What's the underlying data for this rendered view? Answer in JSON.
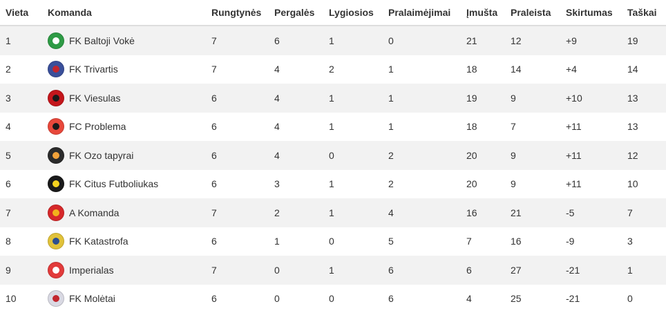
{
  "columns": [
    "Vieta",
    "Komanda",
    "Rungtynės",
    "Pergalės",
    "Lygiosios",
    "Pralaimėjimai",
    "Įmušta",
    "Praleista",
    "Skirtumas",
    "Taškai"
  ],
  "rows": [
    {
      "place": "1",
      "team": "FK Baltoji Vokė",
      "logo": "baltoji-voke-crest-icon",
      "color": "#2e9b45",
      "accent": "#ffffff",
      "played": "7",
      "won": "6",
      "drawn": "1",
      "lost": "0",
      "scored": "21",
      "conceded": "12",
      "diff": "+9",
      "points": "19"
    },
    {
      "place": "2",
      "team": "FK Trivartis",
      "logo": "trivartis-crest-icon",
      "color": "#3a4f9a",
      "accent": "#c2262e",
      "played": "7",
      "won": "4",
      "drawn": "2",
      "lost": "1",
      "scored": "18",
      "conceded": "14",
      "diff": "+4",
      "points": "14"
    },
    {
      "place": "3",
      "team": "FK Viesulas",
      "logo": "viesulas-crest-icon",
      "color": "#c4161c",
      "accent": "#1a1a1a",
      "played": "6",
      "won": "4",
      "drawn": "1",
      "lost": "1",
      "scored": "19",
      "conceded": "9",
      "diff": "+10",
      "points": "13"
    },
    {
      "place": "4",
      "team": "FC Problema",
      "logo": "problema-crest-icon",
      "color": "#e8483b",
      "accent": "#1a1a1a",
      "played": "6",
      "won": "4",
      "drawn": "1",
      "lost": "1",
      "scored": "18",
      "conceded": "7",
      "diff": "+11",
      "points": "13"
    },
    {
      "place": "5",
      "team": "FK Ozo tapyrai",
      "logo": "ozo-tapyrai-crest-icon",
      "color": "#2b2b2b",
      "accent": "#f2a23a",
      "played": "6",
      "won": "4",
      "drawn": "0",
      "lost": "2",
      "scored": "20",
      "conceded": "9",
      "diff": "+11",
      "points": "12"
    },
    {
      "place": "6",
      "team": "FK Citus Futboliukas",
      "logo": "citus-futboliukas-crest-icon",
      "color": "#1a1a1a",
      "accent": "#f4d21f",
      "played": "6",
      "won": "3",
      "drawn": "1",
      "lost": "2",
      "scored": "20",
      "conceded": "9",
      "diff": "+11",
      "points": "10"
    },
    {
      "place": "7",
      "team": "A Komanda",
      "logo": "a-komanda-crest-icon",
      "color": "#d6282a",
      "accent": "#f2b21c",
      "played": "7",
      "won": "2",
      "drawn": "1",
      "lost": "4",
      "scored": "16",
      "conceded": "21",
      "diff": "-5",
      "points": "7"
    },
    {
      "place": "8",
      "team": "FK Katastrofa",
      "logo": "katastrofa-crest-icon",
      "color": "#e1c23a",
      "accent": "#2d4f8f",
      "played": "6",
      "won": "1",
      "drawn": "0",
      "lost": "5",
      "scored": "7",
      "conceded": "16",
      "diff": "-9",
      "points": "3"
    },
    {
      "place": "9",
      "team": "Imperialas",
      "logo": "imperialas-crest-icon",
      "color": "#e23b3b",
      "accent": "#ffffff",
      "played": "7",
      "won": "0",
      "drawn": "1",
      "lost": "6",
      "scored": "6",
      "conceded": "27",
      "diff": "-21",
      "points": "1"
    },
    {
      "place": "10",
      "team": "FK Molėtai",
      "logo": "moletai-crest-icon",
      "color": "#d9d9e3",
      "accent": "#c2262e",
      "played": "6",
      "won": "0",
      "drawn": "0",
      "lost": "6",
      "scored": "4",
      "conceded": "25",
      "diff": "-21",
      "points": "0"
    }
  ]
}
